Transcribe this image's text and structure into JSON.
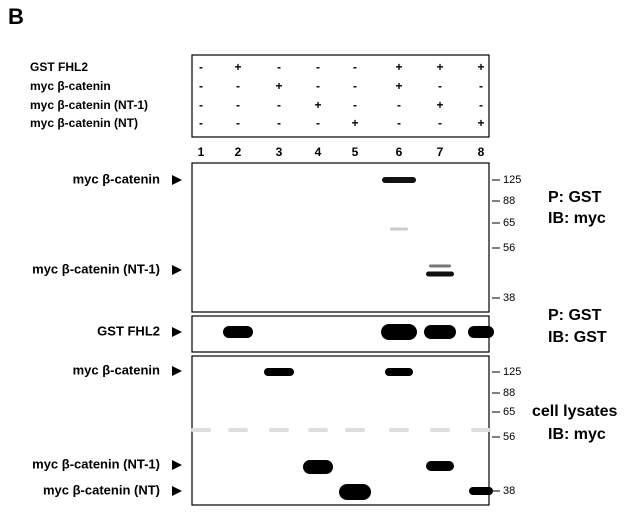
{
  "panel_label": "B",
  "conditions": {
    "rows": [
      {
        "label": "GST FHL2",
        "signs": [
          "-",
          "+",
          "-",
          "-",
          "-",
          "+",
          "+",
          "+"
        ]
      },
      {
        "label": "myc β-catenin",
        "signs": [
          "-",
          "-",
          "+",
          "-",
          "-",
          "+",
          "-",
          "-"
        ]
      },
      {
        "label": "myc β-catenin (NT-1)",
        "signs": [
          "-",
          "-",
          "-",
          "+",
          "-",
          "-",
          "+",
          "-"
        ]
      },
      {
        "label": "myc β-catenin (NT)",
        "signs": [
          "-",
          "-",
          "-",
          "-",
          "+",
          "-",
          "-",
          "+"
        ]
      }
    ]
  },
  "lanes": [
    "1",
    "2",
    "3",
    "4",
    "5",
    "6",
    "7",
    "8"
  ],
  "blots": [
    {
      "left_labels": [
        "myc β-catenin",
        "myc β-catenin (NT-1)"
      ],
      "markers": [
        "125",
        "88",
        "65",
        "56",
        "38"
      ],
      "right_labels": [
        "P: GST",
        "IB: myc"
      ]
    },
    {
      "left_labels": [
        "GST FHL2"
      ],
      "markers": [],
      "right_labels": [
        "P: GST",
        "IB: GST"
      ]
    },
    {
      "left_labels": [
        "myc β-catenin",
        "myc β-catenin (NT-1)",
        "myc β-catenin (NT)"
      ],
      "markers": [
        "125",
        "88",
        "65",
        "56",
        "38"
      ],
      "right_labels": [
        "cell lysates",
        "IB: myc"
      ]
    }
  ]
}
